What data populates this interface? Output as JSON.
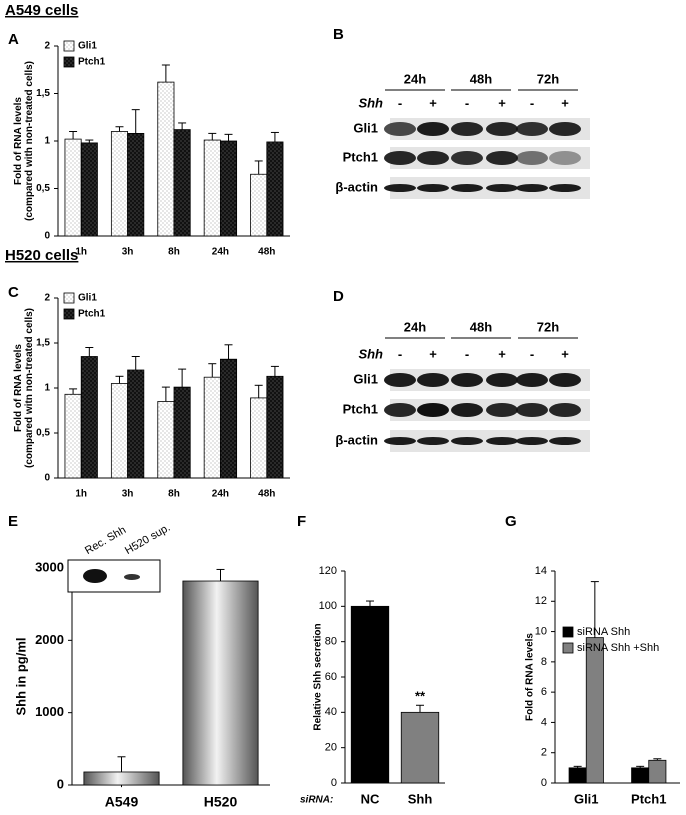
{
  "headings": [
    "A549 cells",
    "H520 cells"
  ],
  "chart_data": [
    {
      "type": "bar",
      "panel": "A",
      "ylabel": [
        "Fold of RNA levels",
        "(compared with non-treated cells)"
      ],
      "categories": [
        "1h",
        "3h",
        "8h",
        "24h",
        "48h"
      ],
      "series": [
        {
          "name": "Gli1",
          "color": "#ffffff",
          "values": [
            1.02,
            1.1,
            1.62,
            1.01,
            0.65
          ],
          "errors": [
            0.08,
            0.05,
            0.18,
            0.07,
            0.14
          ]
        },
        {
          "name": "Ptch1",
          "color": "#111111",
          "values": [
            0.98,
            1.08,
            1.12,
            1.0,
            0.99
          ],
          "errors": [
            0.03,
            0.25,
            0.07,
            0.07,
            0.1
          ]
        }
      ],
      "ylim": [
        0,
        2
      ],
      "yticks": [
        0,
        {
          "value": 0.5,
          "label": "0,5"
        },
        1,
        {
          "value": 1.5,
          "label": "1,5"
        },
        2
      ],
      "legend": "upper left"
    },
    {
      "type": "bar",
      "panel": "C",
      "ylabel": [
        "Fold of RNA levels",
        "(compared witn non-treated cells)"
      ],
      "categories": [
        "1h",
        "3h",
        "8h",
        "24h",
        "48h"
      ],
      "series": [
        {
          "name": "Gli1",
          "color": "#ffffff",
          "values": [
            0.93,
            1.05,
            0.85,
            1.12,
            0.89
          ],
          "errors": [
            0.06,
            0.08,
            0.16,
            0.15,
            0.14
          ]
        },
        {
          "name": "Ptch1",
          "color": "#111111",
          "values": [
            1.35,
            1.2,
            1.01,
            1.32,
            1.13
          ],
          "errors": [
            0.1,
            0.15,
            0.2,
            0.16,
            0.11
          ]
        }
      ],
      "ylim": [
        0,
        2
      ],
      "yticks": [
        0,
        {
          "value": 0.5,
          "label": "0,5"
        },
        1,
        {
          "value": 1.5,
          "label": "1,5"
        },
        2
      ],
      "legend": "upper left"
    },
    {
      "type": "bar",
      "panel": "E",
      "ylabel": [
        "Shh in pg/ml"
      ],
      "categories": [
        "A549",
        "H520"
      ],
      "values": [
        180,
        2820
      ],
      "errors": [
        210,
        160
      ],
      "color": "#555555",
      "ylim": [
        0,
        3000
      ],
      "yticks": [
        0,
        1000,
        2000,
        3000
      ],
      "inset_labels": [
        "Rec. Shh",
        "H520 sup."
      ]
    },
    {
      "type": "bar",
      "panel": "F",
      "ylabel": [
        "Relative Shh secretion"
      ],
      "xlabel": "siRNA:",
      "categories": [
        "NC",
        "Shh"
      ],
      "values": [
        100,
        40
      ],
      "errors": [
        3,
        4
      ],
      "colors": [
        "#000000",
        "#808080"
      ],
      "ylim": [
        0,
        120
      ],
      "yticks": [
        0,
        20,
        40,
        60,
        80,
        100,
        120
      ],
      "annotation": "**"
    },
    {
      "type": "bar",
      "panel": "G",
      "ylabel": [
        "Fold of RNA levels"
      ],
      "categories": [
        "Gli1",
        "Ptch1"
      ],
      "series": [
        {
          "name": "siRNA Shh",
          "color": "#000000",
          "values": [
            1.0,
            1.0
          ],
          "errors": [
            0.1,
            0.1
          ]
        },
        {
          "name": "siRNA Shh +Shh",
          "color": "#808080",
          "values": [
            9.6,
            1.5
          ],
          "errors": [
            3.7,
            0.1
          ]
        }
      ],
      "ylim": [
        0,
        14
      ],
      "yticks": [
        0,
        2,
        4,
        6,
        8,
        10,
        12,
        14
      ],
      "legend": "upper right"
    }
  ],
  "blots": [
    {
      "panel": "B",
      "timepoints": [
        "24h",
        "48h",
        "72h"
      ],
      "treatment": "Shh",
      "signs": [
        "-",
        "+",
        "-",
        "+",
        "-",
        "+"
      ],
      "rows": [
        "Gli1",
        "Ptch1",
        "β-actin"
      ]
    },
    {
      "panel": "D",
      "timepoints": [
        "24h",
        "48h",
        "72h"
      ],
      "treatment": "Shh",
      "signs": [
        "-",
        "+",
        "-",
        "+",
        "-",
        "+"
      ],
      "rows": [
        "Gli1",
        "Ptch1",
        "β-actin"
      ]
    }
  ]
}
